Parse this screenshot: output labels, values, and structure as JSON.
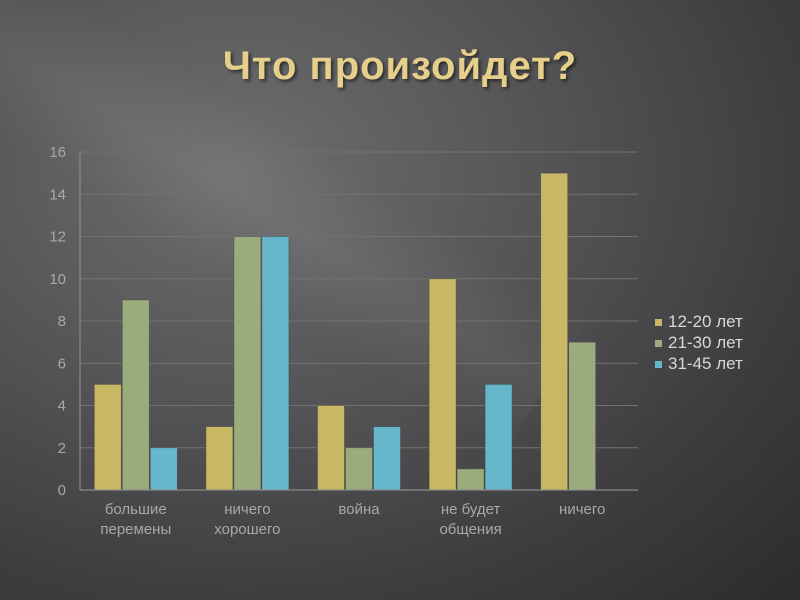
{
  "title": "Что произойдет?",
  "chart_data": {
    "type": "bar",
    "categories": [
      [
        "большие",
        "перемены"
      ],
      [
        "ничего",
        "хорошего"
      ],
      [
        "война"
      ],
      [
        "не будет",
        "общения"
      ],
      [
        "ничего"
      ]
    ],
    "series": [
      {
        "name": "12-20 лет",
        "color": "#c8b765",
        "values": [
          5,
          3,
          4,
          10,
          15
        ]
      },
      {
        "name": "21-30 лет",
        "color": "#9aac7c",
        "values": [
          9,
          12,
          2,
          1,
          7
        ]
      },
      {
        "name": "31-45 лет",
        "color": "#67b7cc",
        "values": [
          2,
          12,
          3,
          5,
          null
        ]
      }
    ],
    "ylim": [
      0,
      16
    ],
    "yticks": [
      0,
      2,
      4,
      6,
      8,
      10,
      12,
      14,
      16
    ],
    "grid": true,
    "legend": "right"
  }
}
